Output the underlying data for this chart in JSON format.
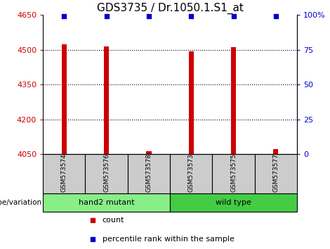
{
  "title": "GDS3735 / Dr.1050.1.S1_at",
  "samples": [
    "GSM573574",
    "GSM573576",
    "GSM573578",
    "GSM573573",
    "GSM573575",
    "GSM573577"
  ],
  "counts": [
    4525,
    4515,
    4063,
    4493,
    4513,
    4072
  ],
  "percentiles": [
    99,
    99,
    99,
    99,
    99,
    99
  ],
  "ylim_left": [
    4050,
    4650
  ],
  "yticks_left": [
    4050,
    4200,
    4350,
    4500,
    4650
  ],
  "ylim_right": [
    0,
    100
  ],
  "yticks_right": [
    0,
    25,
    50,
    75,
    100
  ],
  "ytick_labels_right": [
    "0",
    "25",
    "50",
    "75",
    "100%"
  ],
  "groups": [
    {
      "label": "hand2 mutant",
      "indices": [
        0,
        1,
        2
      ],
      "color": "#88ee88"
    },
    {
      "label": "wild type",
      "indices": [
        3,
        4,
        5
      ],
      "color": "#44cc44"
    }
  ],
  "bar_color": "#cc0000",
  "dot_color": "#0000cc",
  "bar_width": 0.12,
  "panel_bg": "#ffffff",
  "sample_box_color": "#cccccc",
  "genotype_label": "genotype/variation",
  "legend_count_label": "count",
  "legend_pct_label": "percentile rank within the sample",
  "title_fontsize": 11,
  "tick_fontsize": 8,
  "left_tick_color": "#cc0000",
  "right_tick_color": "#0000cc"
}
